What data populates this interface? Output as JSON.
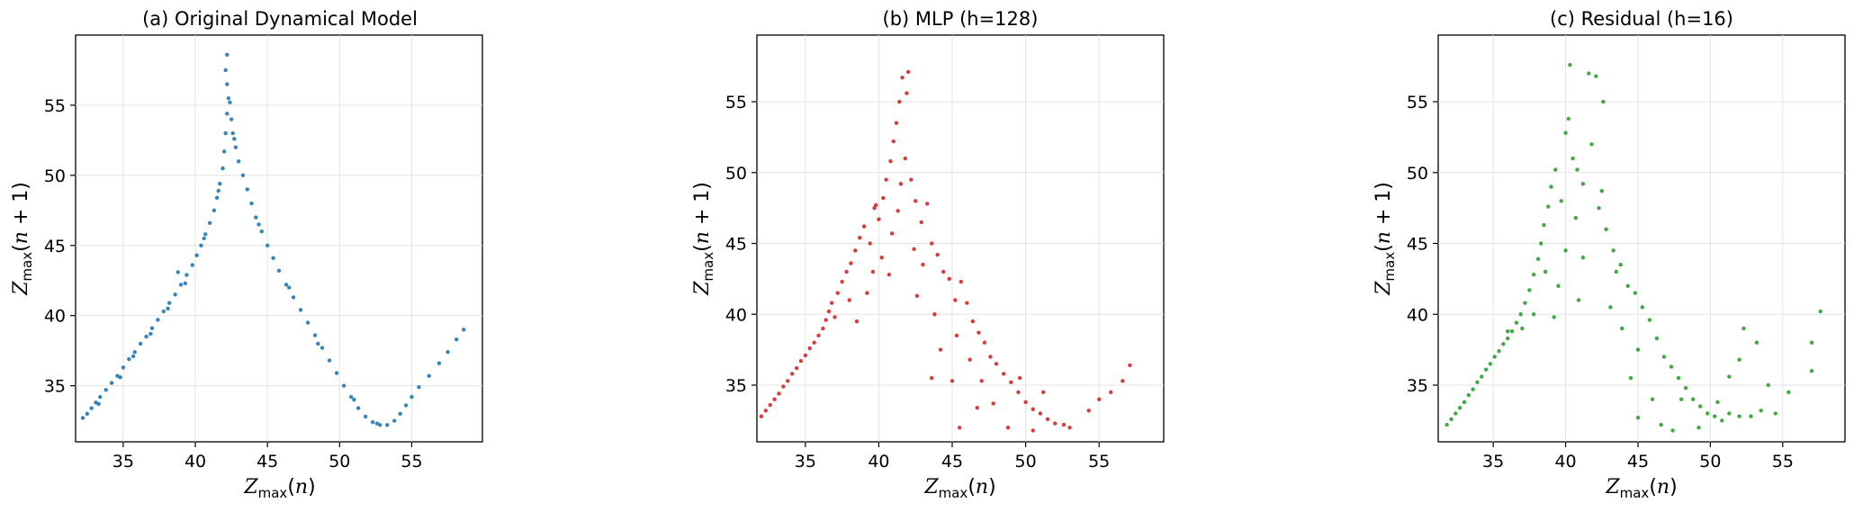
{
  "chart_data": [
    {
      "type": "scatter",
      "title": "(a) Original Dynamical Model",
      "xlabel": "Zmax(n)",
      "ylabel": "Zmax(n + 1)",
      "xlim": [
        31.7,
        59.9
      ],
      "ylim": [
        31.0,
        60.0
      ],
      "xticks": [
        35,
        40,
        45,
        50,
        55
      ],
      "yticks": [
        35,
        40,
        45,
        50,
        55
      ],
      "grid": true,
      "color": "#1f77b4",
      "points": [
        [
          32.2,
          32.7
        ],
        [
          32.5,
          33.0
        ],
        [
          32.8,
          33.4
        ],
        [
          33.1,
          33.8
        ],
        [
          33.4,
          34.2
        ],
        [
          33.8,
          34.7
        ],
        [
          34.2,
          35.2
        ],
        [
          34.6,
          35.7
        ],
        [
          35.0,
          36.3
        ],
        [
          35.4,
          36.9
        ],
        [
          35.8,
          37.4
        ],
        [
          36.2,
          38.0
        ],
        [
          36.6,
          38.5
        ],
        [
          37.0,
          39.1
        ],
        [
          37.4,
          39.7
        ],
        [
          37.8,
          40.3
        ],
        [
          38.2,
          40.9
        ],
        [
          38.6,
          41.5
        ],
        [
          39.0,
          42.2
        ],
        [
          39.4,
          42.9
        ],
        [
          39.8,
          43.6
        ],
        [
          40.1,
          44.3
        ],
        [
          40.4,
          45.0
        ],
        [
          40.7,
          45.8
        ],
        [
          41.0,
          46.6
        ],
        [
          41.3,
          47.5
        ],
        [
          41.5,
          48.4
        ],
        [
          41.7,
          49.4
        ],
        [
          41.9,
          50.5
        ],
        [
          42.0,
          51.7
        ],
        [
          42.1,
          53.0
        ],
        [
          42.2,
          54.4
        ],
        [
          42.3,
          55.5
        ],
        [
          42.2,
          56.5
        ],
        [
          42.1,
          57.5
        ],
        [
          42.2,
          58.6
        ],
        [
          42.4,
          55.2
        ],
        [
          42.5,
          54.0
        ],
        [
          42.6,
          53.0
        ],
        [
          42.8,
          52.0
        ],
        [
          43.0,
          51.0
        ],
        [
          43.3,
          50.0
        ],
        [
          43.6,
          49.0
        ],
        [
          43.9,
          48.0
        ],
        [
          44.2,
          47.0
        ],
        [
          44.6,
          46.0
        ],
        [
          45.0,
          45.0
        ],
        [
          45.4,
          44.1
        ],
        [
          45.8,
          43.2
        ],
        [
          46.3,
          42.2
        ],
        [
          46.8,
          41.3
        ],
        [
          47.3,
          40.4
        ],
        [
          47.8,
          39.5
        ],
        [
          48.3,
          38.6
        ],
        [
          48.8,
          37.7
        ],
        [
          49.3,
          36.8
        ],
        [
          49.8,
          35.9
        ],
        [
          50.3,
          35.0
        ],
        [
          50.8,
          34.2
        ],
        [
          51.3,
          33.4
        ],
        [
          51.8,
          32.8
        ],
        [
          52.3,
          32.4
        ],
        [
          52.8,
          32.2
        ],
        [
          53.3,
          32.2
        ],
        [
          53.8,
          32.5
        ],
        [
          54.2,
          33.0
        ],
        [
          54.6,
          33.6
        ],
        [
          55.0,
          34.2
        ],
        [
          55.5,
          34.9
        ],
        [
          56.2,
          35.7
        ],
        [
          56.9,
          36.6
        ],
        [
          57.5,
          37.4
        ],
        [
          58.1,
          38.3
        ],
        [
          58.6,
          39.0
        ],
        [
          33.3,
          33.7
        ],
        [
          34.8,
          35.6
        ],
        [
          35.7,
          37.1
        ],
        [
          36.9,
          38.7
        ],
        [
          38.1,
          40.5
        ],
        [
          38.8,
          43.1
        ],
        [
          39.3,
          42.3
        ],
        [
          40.6,
          45.5
        ],
        [
          41.6,
          48.9
        ],
        [
          42.7,
          52.6
        ],
        [
          44.4,
          46.5
        ],
        [
          46.5,
          42.0
        ],
        [
          48.5,
          38.0
        ],
        [
          51.0,
          34.0
        ],
        [
          52.6,
          32.3
        ]
      ]
    },
    {
      "type": "scatter",
      "title": "(b) MLP (h=128)",
      "xlabel": "Zmax(n)",
      "ylabel": "Zmax(n + 1)",
      "xlim": [
        31.7,
        59.4
      ],
      "ylim": [
        31.0,
        59.7
      ],
      "xticks": [
        35,
        40,
        45,
        50,
        55
      ],
      "yticks": [
        35,
        40,
        45,
        50,
        55
      ],
      "grid": true,
      "color": "#d62728",
      "points": [
        [
          32.0,
          32.8
        ],
        [
          32.3,
          33.2
        ],
        [
          32.6,
          33.6
        ],
        [
          32.9,
          34.0
        ],
        [
          33.2,
          34.4
        ],
        [
          33.5,
          34.9
        ],
        [
          33.8,
          35.3
        ],
        [
          34.1,
          35.8
        ],
        [
          34.4,
          36.2
        ],
        [
          34.7,
          36.7
        ],
        [
          35.0,
          37.1
        ],
        [
          35.3,
          37.6
        ],
        [
          35.6,
          38.0
        ],
        [
          35.9,
          38.5
        ],
        [
          36.2,
          39.0
        ],
        [
          36.4,
          39.6
        ],
        [
          36.8,
          40.8
        ],
        [
          37.2,
          41.5
        ],
        [
          37.5,
          42.3
        ],
        [
          37.8,
          43.0
        ],
        [
          38.1,
          43.6
        ],
        [
          38.4,
          44.5
        ],
        [
          38.7,
          45.4
        ],
        [
          39.0,
          46.2
        ],
        [
          39.4,
          45.0
        ],
        [
          39.7,
          47.5
        ],
        [
          40.0,
          46.7
        ],
        [
          40.3,
          48.2
        ],
        [
          40.5,
          49.5
        ],
        [
          40.8,
          50.8
        ],
        [
          41.0,
          52.2
        ],
        [
          41.2,
          53.5
        ],
        [
          41.4,
          55.0
        ],
        [
          41.6,
          56.7
        ],
        [
          42.0,
          57.1
        ],
        [
          41.8,
          51.0
        ],
        [
          42.2,
          49.5
        ],
        [
          42.5,
          48.0
        ],
        [
          42.9,
          46.5
        ],
        [
          43.3,
          47.8
        ],
        [
          43.6,
          45.0
        ],
        [
          44.0,
          44.2
        ],
        [
          44.4,
          43.0
        ],
        [
          44.8,
          42.5
        ],
        [
          45.2,
          41.0
        ],
        [
          45.6,
          42.3
        ],
        [
          46.0,
          40.8
        ],
        [
          46.4,
          39.5
        ],
        [
          46.8,
          38.7
        ],
        [
          47.2,
          38.0
        ],
        [
          47.6,
          37.0
        ],
        [
          48.0,
          36.5
        ],
        [
          48.5,
          35.8
        ],
        [
          49.0,
          35.2
        ],
        [
          49.5,
          34.5
        ],
        [
          50.0,
          33.8
        ],
        [
          50.5,
          33.3
        ],
        [
          51.0,
          33.0
        ],
        [
          51.5,
          32.6
        ],
        [
          52.0,
          32.3
        ],
        [
          52.6,
          32.2
        ],
        [
          53.0,
          32.0
        ],
        [
          54.3,
          33.2
        ],
        [
          55.0,
          34.0
        ],
        [
          55.8,
          34.5
        ],
        [
          56.6,
          35.3
        ],
        [
          57.1,
          36.4
        ],
        [
          38.5,
          39.5
        ],
        [
          39.2,
          41.5
        ],
        [
          39.6,
          43.0
        ],
        [
          40.2,
          44.0
        ],
        [
          40.9,
          45.7
        ],
        [
          41.3,
          47.3
        ],
        [
          41.5,
          49.2
        ],
        [
          42.4,
          44.6
        ],
        [
          43.0,
          43.5
        ],
        [
          43.8,
          40.0
        ],
        [
          44.2,
          37.5
        ],
        [
          45.0,
          35.3
        ],
        [
          45.3,
          38.5
        ],
        [
          46.2,
          36.8
        ],
        [
          47.0,
          35.3
        ],
        [
          47.8,
          33.7
        ],
        [
          48.8,
          32.0
        ],
        [
          49.6,
          35.5
        ],
        [
          50.5,
          31.8
        ],
        [
          51.2,
          34.5
        ],
        [
          37.0,
          39.8
        ],
        [
          36.6,
          40.2
        ],
        [
          38.0,
          41.0
        ],
        [
          39.8,
          47.7
        ],
        [
          40.7,
          42.8
        ],
        [
          41.9,
          55.6
        ],
        [
          42.6,
          41.3
        ],
        [
          43.6,
          35.5
        ],
        [
          45.5,
          32.0
        ],
        [
          46.7,
          33.4
        ]
      ]
    },
    {
      "type": "scatter",
      "title": "(c) Residual (h=16)",
      "xlabel": "Zmax(n)",
      "ylabel": "Zmax(n + 1)",
      "xlim": [
        31.2,
        59.3
      ],
      "ylim": [
        31.0,
        59.7
      ],
      "xticks": [
        35,
        40,
        45,
        50,
        55
      ],
      "yticks": [
        35,
        40,
        45,
        50,
        55
      ],
      "grid": true,
      "color": "#2ca02c",
      "points": [
        [
          31.8,
          32.2
        ],
        [
          32.1,
          32.6
        ],
        [
          32.4,
          33.0
        ],
        [
          32.7,
          33.4
        ],
        [
          33.0,
          33.8
        ],
        [
          33.3,
          34.3
        ],
        [
          33.6,
          34.7
        ],
        [
          33.9,
          35.2
        ],
        [
          34.2,
          35.6
        ],
        [
          34.5,
          36.1
        ],
        [
          34.8,
          36.5
        ],
        [
          35.1,
          37.0
        ],
        [
          35.4,
          37.4
        ],
        [
          35.7,
          37.9
        ],
        [
          36.0,
          38.3
        ],
        [
          36.3,
          38.8
        ],
        [
          36.6,
          39.4
        ],
        [
          36.9,
          40.0
        ],
        [
          37.2,
          40.8
        ],
        [
          37.5,
          41.7
        ],
        [
          37.8,
          42.8
        ],
        [
          38.1,
          43.9
        ],
        [
          38.3,
          45.0
        ],
        [
          38.5,
          46.3
        ],
        [
          38.8,
          47.6
        ],
        [
          39.0,
          49.0
        ],
        [
          39.3,
          50.2
        ],
        [
          39.7,
          48.0
        ],
        [
          40.0,
          52.8
        ],
        [
          40.2,
          53.8
        ],
        [
          40.5,
          51.0
        ],
        [
          40.8,
          50.2
        ],
        [
          41.2,
          49.2
        ],
        [
          41.6,
          57.0
        ],
        [
          42.1,
          56.8
        ],
        [
          42.6,
          55.0
        ],
        [
          42.3,
          47.5
        ],
        [
          42.8,
          46.0
        ],
        [
          43.3,
          44.5
        ],
        [
          43.8,
          43.5
        ],
        [
          44.3,
          42.0
        ],
        [
          44.8,
          41.5
        ],
        [
          45.3,
          40.5
        ],
        [
          45.8,
          39.6
        ],
        [
          46.3,
          38.3
        ],
        [
          46.8,
          37.0
        ],
        [
          47.3,
          36.3
        ],
        [
          47.8,
          35.5
        ],
        [
          48.3,
          34.8
        ],
        [
          48.8,
          34.0
        ],
        [
          49.3,
          33.5
        ],
        [
          49.8,
          33.0
        ],
        [
          50.3,
          32.8
        ],
        [
          50.8,
          32.5
        ],
        [
          51.3,
          33.0
        ],
        [
          52.0,
          32.8
        ],
        [
          52.8,
          32.8
        ],
        [
          53.5,
          33.2
        ],
        [
          54.5,
          33.0
        ],
        [
          55.4,
          34.5
        ],
        [
          57.0,
          38.0
        ],
        [
          57.0,
          36.0
        ],
        [
          57.6,
          40.2
        ],
        [
          40.3,
          57.6
        ],
        [
          39.5,
          42.0
        ],
        [
          40.0,
          44.5
        ],
        [
          40.7,
          46.8
        ],
        [
          41.2,
          44.0
        ],
        [
          41.8,
          52.0
        ],
        [
          42.5,
          48.7
        ],
        [
          43.1,
          40.5
        ],
        [
          43.9,
          39.0
        ],
        [
          44.5,
          35.5
        ],
        [
          45.0,
          37.5
        ],
        [
          45.0,
          32.7
        ],
        [
          46.0,
          34.0
        ],
        [
          46.6,
          32.2
        ],
        [
          47.4,
          31.8
        ],
        [
          48.0,
          34.0
        ],
        [
          49.2,
          32.0
        ],
        [
          50.5,
          33.8
        ],
        [
          51.3,
          35.6
        ],
        [
          52.3,
          39.0
        ],
        [
          52.0,
          36.8
        ],
        [
          53.2,
          38.0
        ],
        [
          54.0,
          35.0
        ],
        [
          37.0,
          39.0
        ],
        [
          36.0,
          38.8
        ],
        [
          37.8,
          40.0
        ],
        [
          38.6,
          43.0
        ],
        [
          39.2,
          39.8
        ],
        [
          40.9,
          41.0
        ],
        [
          43.5,
          43.0
        ]
      ]
    }
  ]
}
